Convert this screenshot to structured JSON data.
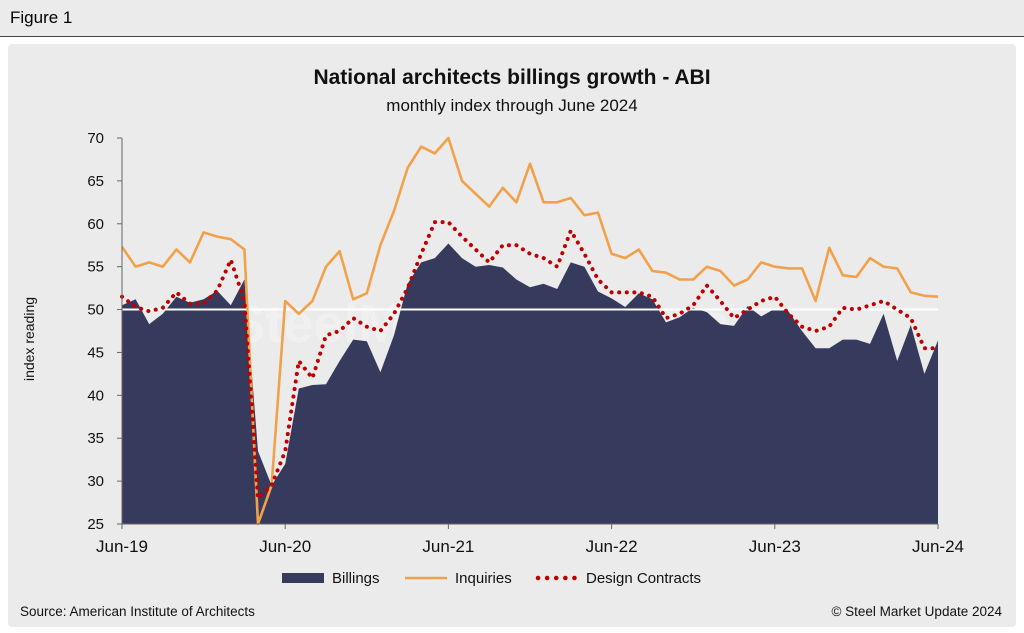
{
  "figure_label": "Figure 1",
  "source": "Source: American Institute of Architects",
  "credit": "© Steel Market Update 2024",
  "watermark": "SteelMarket Update",
  "colors": {
    "billings": "#363b5e",
    "inquiries": "#f2a14a",
    "design_contracts": "#c00000",
    "reference_line": "#ffffff",
    "background": "#ebebeb"
  },
  "chart_data": {
    "type": "area",
    "title": "National architects billings growth - ABI",
    "subtitle": "monthly index through June 2024",
    "ylabel": "index reading",
    "xlabel": "",
    "ylim": [
      25,
      70
    ],
    "yticks": [
      25,
      30,
      35,
      40,
      45,
      50,
      55,
      60,
      65,
      70
    ],
    "xticks": [
      {
        "label": "Jun-19",
        "index": 0
      },
      {
        "label": "Jun-20",
        "index": 12
      },
      {
        "label": "Jun-21",
        "index": 24
      },
      {
        "label": "Jun-22",
        "index": 36
      },
      {
        "label": "Jun-23",
        "index": 48
      },
      {
        "label": "Jun-24",
        "index": 60
      }
    ],
    "reference_line": 50,
    "grid": false,
    "legend_position": "bottom",
    "series": [
      {
        "name": "Billings",
        "style": "area",
        "values": [
          50.5,
          51.2,
          48.3,
          49.5,
          51.5,
          50.8,
          51.2,
          52.2,
          50.5,
          53.5,
          33.5,
          29.5,
          32.0,
          40.8,
          41.2,
          41.3,
          44.0,
          46.5,
          46.3,
          42.7,
          47.0,
          53.0,
          55.5,
          56.0,
          57.7,
          56.0,
          55.0,
          55.2,
          54.9,
          53.5,
          52.6,
          53.0,
          52.4,
          55.5,
          55.0,
          52.1,
          51.3,
          50.3,
          51.9,
          51.2,
          48.5,
          49.1,
          50.2,
          49.7,
          48.3,
          48.1,
          50.4,
          49.2,
          50.1,
          49.8,
          47.5,
          45.5,
          45.5,
          46.5,
          46.5,
          46.0,
          49.5,
          44.0,
          48.2,
          42.5,
          46.4
        ]
      },
      {
        "name": "Inquiries",
        "style": "line",
        "values": [
          57.3,
          55.0,
          55.5,
          55.0,
          57.0,
          55.5,
          59.0,
          58.5,
          58.2,
          57.0,
          25.0,
          29.5,
          51.0,
          49.5,
          51.0,
          55.0,
          56.8,
          51.2,
          51.9,
          57.5,
          61.5,
          66.5,
          69.0,
          68.2,
          70.0,
          65.0,
          63.5,
          62.0,
          64.2,
          62.5,
          67.0,
          62.5,
          62.5,
          63.0,
          61.0,
          61.3,
          56.5,
          56.0,
          57.0,
          54.5,
          54.3,
          53.5,
          53.5,
          55.0,
          54.5,
          52.8,
          53.5,
          55.5,
          55.0,
          54.8,
          54.8,
          51.0,
          57.2,
          54.0,
          53.8,
          56.0,
          55.0,
          54.8,
          52.0,
          51.6,
          51.5
        ]
      },
      {
        "name": "Design Contracts",
        "style": "dotted",
        "values": [
          51.5,
          50.3,
          49.8,
          50.2,
          52.0,
          50.7,
          50.7,
          52.2,
          55.8,
          51.0,
          28.0,
          29.5,
          33.5,
          44.0,
          42.0,
          47.0,
          47.5,
          49.0,
          48.0,
          47.5,
          49.5,
          52.5,
          56.5,
          60.2,
          60.2,
          58.5,
          57.0,
          55.5,
          57.5,
          57.5,
          56.5,
          56.0,
          55.0,
          59.2,
          56.5,
          53.5,
          52.0,
          52.0,
          52.0,
          51.5,
          49.0,
          49.5,
          50.5,
          52.8,
          51.0,
          49.0,
          50.0,
          51.0,
          51.5,
          49.5,
          48.0,
          47.5,
          48.0,
          50.2,
          50.0,
          50.5,
          51.0,
          50.0,
          49.0,
          45.5,
          45.5
        ]
      }
    ]
  }
}
